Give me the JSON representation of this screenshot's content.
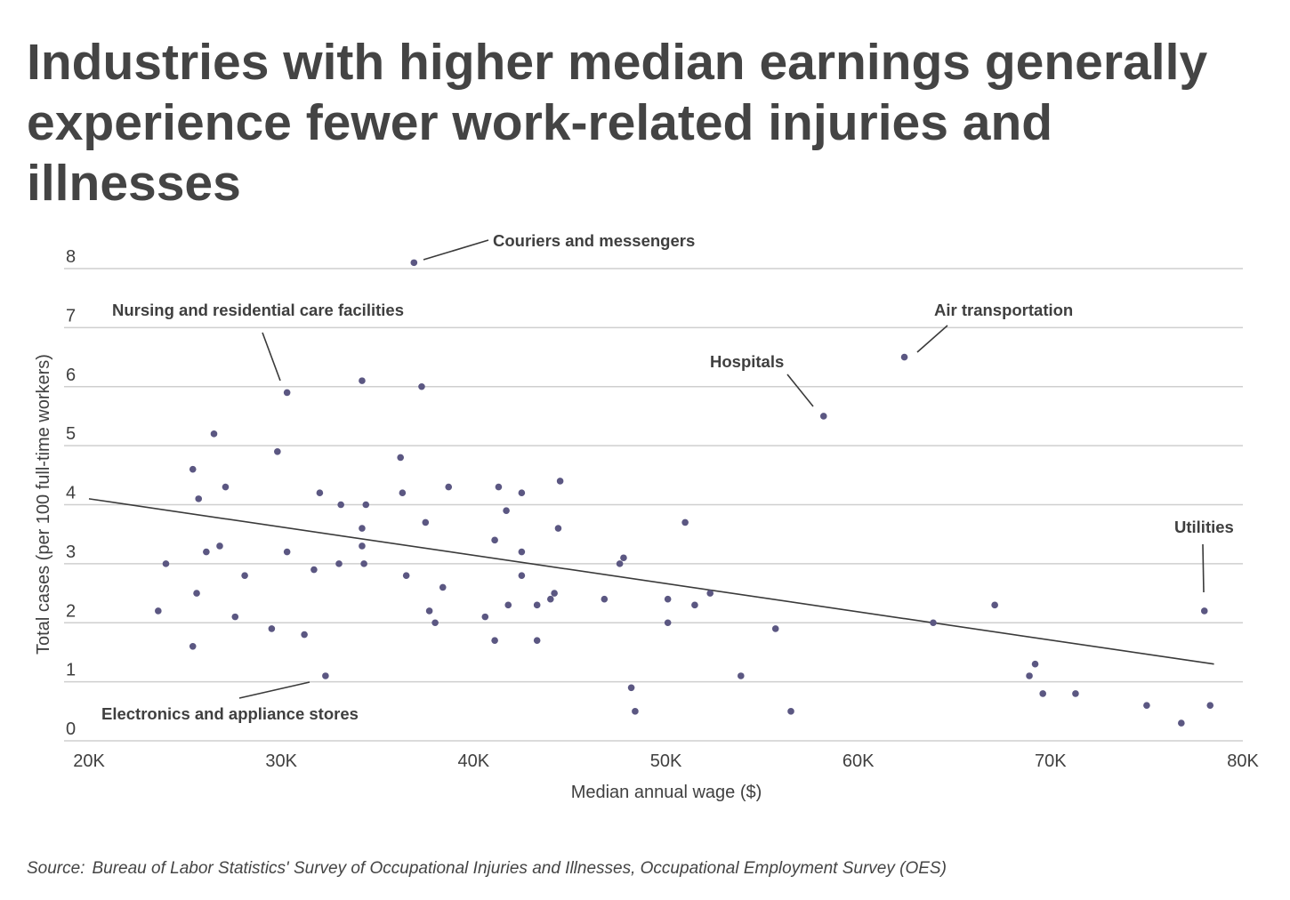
{
  "title_lines": [
    "Industries with higher median earnings generally",
    "experience fewer work-related injuries and illnesses"
  ],
  "source": {
    "lead": "Source:",
    "text": "Bureau of Labor Statistics' Survey of Occupational Injuries and Illnesses, Occupational Employment Survey (OES)"
  },
  "colors": {
    "point": "#5b5782",
    "trend": "#3a3a3a",
    "grid": "#cfcfcf",
    "text": "#3f3f3f"
  },
  "chart_data": {
    "type": "scatter",
    "xlabel": "Median annual wage ($)",
    "ylabel": "Total cases (per 100 full-time workers)",
    "xlim": [
      20000,
      80000
    ],
    "ylim": [
      0,
      8
    ],
    "x_ticks": [
      20000,
      30000,
      40000,
      50000,
      60000,
      70000,
      80000
    ],
    "x_tick_labels": [
      "20K",
      "30K",
      "40K",
      "50K",
      "60K",
      "70K",
      "80K"
    ],
    "y_ticks": [
      0,
      1,
      2,
      3,
      4,
      5,
      6,
      7,
      8
    ],
    "y_tick_labels": [
      "0",
      "1",
      "2",
      "3",
      "4",
      "5",
      "6",
      "7",
      "8"
    ],
    "grid": "horizontal",
    "trendline": {
      "x": [
        20000,
        78500
      ],
      "y": [
        4.1,
        1.3
      ]
    },
    "points": [
      {
        "x": 36900,
        "y": 8.1
      },
      {
        "x": 62400,
        "y": 6.5
      },
      {
        "x": 58200,
        "y": 5.5
      },
      {
        "x": 30300,
        "y": 5.9
      },
      {
        "x": 34200,
        "y": 6.1
      },
      {
        "x": 37300,
        "y": 6.0
      },
      {
        "x": 78000,
        "y": 2.2
      },
      {
        "x": 32300,
        "y": 1.1
      },
      {
        "x": 26500,
        "y": 5.2
      },
      {
        "x": 25400,
        "y": 4.6
      },
      {
        "x": 29800,
        "y": 4.9
      },
      {
        "x": 36200,
        "y": 4.8
      },
      {
        "x": 25700,
        "y": 4.1
      },
      {
        "x": 27100,
        "y": 4.3
      },
      {
        "x": 32000,
        "y": 4.2
      },
      {
        "x": 33100,
        "y": 4.0
      },
      {
        "x": 34400,
        "y": 4.0
      },
      {
        "x": 36300,
        "y": 4.2
      },
      {
        "x": 38700,
        "y": 4.3
      },
      {
        "x": 41300,
        "y": 4.3
      },
      {
        "x": 42500,
        "y": 4.2
      },
      {
        "x": 44500,
        "y": 4.4
      },
      {
        "x": 41700,
        "y": 3.9
      },
      {
        "x": 37500,
        "y": 3.7
      },
      {
        "x": 34200,
        "y": 3.6
      },
      {
        "x": 44400,
        "y": 3.6
      },
      {
        "x": 51000,
        "y": 3.7
      },
      {
        "x": 41100,
        "y": 3.4
      },
      {
        "x": 34200,
        "y": 3.3
      },
      {
        "x": 26800,
        "y": 3.3
      },
      {
        "x": 26100,
        "y": 3.2
      },
      {
        "x": 30300,
        "y": 3.2
      },
      {
        "x": 42500,
        "y": 3.2
      },
      {
        "x": 47800,
        "y": 3.1
      },
      {
        "x": 47600,
        "y": 3.0
      },
      {
        "x": 24000,
        "y": 3.0
      },
      {
        "x": 33000,
        "y": 3.0
      },
      {
        "x": 34300,
        "y": 3.0
      },
      {
        "x": 31700,
        "y": 2.9
      },
      {
        "x": 28100,
        "y": 2.8
      },
      {
        "x": 36500,
        "y": 2.8
      },
      {
        "x": 42500,
        "y": 2.8
      },
      {
        "x": 25600,
        "y": 2.5
      },
      {
        "x": 38400,
        "y": 2.6
      },
      {
        "x": 44200,
        "y": 2.5
      },
      {
        "x": 52300,
        "y": 2.5
      },
      {
        "x": 44000,
        "y": 2.4
      },
      {
        "x": 46800,
        "y": 2.4
      },
      {
        "x": 50100,
        "y": 2.4
      },
      {
        "x": 41800,
        "y": 2.3
      },
      {
        "x": 43300,
        "y": 2.3
      },
      {
        "x": 51500,
        "y": 2.3
      },
      {
        "x": 67100,
        "y": 2.3
      },
      {
        "x": 23600,
        "y": 2.2
      },
      {
        "x": 37700,
        "y": 2.2
      },
      {
        "x": 27600,
        "y": 2.1
      },
      {
        "x": 40600,
        "y": 2.1
      },
      {
        "x": 38000,
        "y": 2.0
      },
      {
        "x": 50100,
        "y": 2.0
      },
      {
        "x": 63900,
        "y": 2.0
      },
      {
        "x": 29500,
        "y": 1.9
      },
      {
        "x": 55700,
        "y": 1.9
      },
      {
        "x": 31200,
        "y": 1.8
      },
      {
        "x": 41100,
        "y": 1.7
      },
      {
        "x": 43300,
        "y": 1.7
      },
      {
        "x": 25400,
        "y": 1.6
      },
      {
        "x": 69200,
        "y": 1.3
      },
      {
        "x": 53900,
        "y": 1.1
      },
      {
        "x": 68900,
        "y": 1.1
      },
      {
        "x": 48200,
        "y": 0.9
      },
      {
        "x": 69600,
        "y": 0.8
      },
      {
        "x": 71300,
        "y": 0.8
      },
      {
        "x": 75000,
        "y": 0.6
      },
      {
        "x": 78300,
        "y": 0.6
      },
      {
        "x": 48400,
        "y": 0.5
      },
      {
        "x": 56500,
        "y": 0.5
      },
      {
        "x": 76800,
        "y": 0.3
      }
    ],
    "annotations": [
      {
        "text": "Couriers and messengers",
        "x": 36900,
        "y": 8.1
      },
      {
        "text": "Nursing and residential care facilities",
        "x": 30300,
        "y": 5.9
      },
      {
        "text": "Hospitals",
        "x": 58200,
        "y": 5.5
      },
      {
        "text": "Air transportation",
        "x": 62400,
        "y": 6.5
      },
      {
        "text": "Utilities",
        "x": 78000,
        "y": 2.2
      },
      {
        "text": "Electronics and appliance stores",
        "x": 32300,
        "y": 1.1
      }
    ]
  }
}
